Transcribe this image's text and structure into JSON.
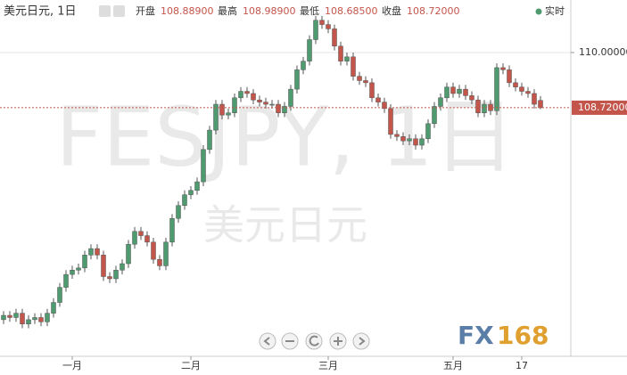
{
  "header": {
    "symbol": "美元日元, 1日",
    "open_label": "开盘",
    "open": "108.88900",
    "high_label": "最高",
    "high": "108.98900",
    "low_label": "最低",
    "low": "108.68500",
    "close_label": "收盘",
    "close": "108.72000",
    "live": "实时"
  },
  "watermark": {
    "symbol": "FESJPY, 1日",
    "name": "美元日元"
  },
  "logo": {
    "brand": "FX",
    "digits": "168"
  },
  "chart_data": {
    "type": "candlestick",
    "categories": [
      null,
      null,
      null,
      null,
      null,
      null,
      null,
      null,
      null,
      null,
      null,
      "一月",
      null,
      null,
      null,
      null,
      null,
      null,
      null,
      null,
      null,
      null,
      null,
      null,
      null,
      null,
      null,
      null,
      null,
      null,
      "二月",
      null,
      null,
      null,
      null,
      null,
      null,
      null,
      null,
      null,
      null,
      null,
      null,
      null,
      null,
      null,
      null,
      null,
      null,
      null,
      null,
      null,
      "三月",
      null,
      null,
      null,
      null,
      null,
      null,
      null,
      null,
      null,
      null,
      null,
      null,
      null,
      null,
      null,
      null,
      null,
      null,
      null,
      "五月",
      null,
      null,
      null,
      null,
      null,
      null,
      null,
      null,
      null,
      null,
      "17",
      null,
      null,
      null
    ],
    "open": [
      103.8,
      103.9,
      103.85,
      103.95,
      103.7,
      103.8,
      103.85,
      103.75,
      103.95,
      104.2,
      104.55,
      104.85,
      104.95,
      105.0,
      105.3,
      105.45,
      105.3,
      104.8,
      104.75,
      104.95,
      105.1,
      105.55,
      105.85,
      105.75,
      105.6,
      105.2,
      105.05,
      105.6,
      106.15,
      106.45,
      106.7,
      106.8,
      107.0,
      107.75,
      108.2,
      108.8,
      108.55,
      108.6,
      108.95,
      109.1,
      109.05,
      108.9,
      108.85,
      108.8,
      108.8,
      108.6,
      108.75,
      109.15,
      109.6,
      109.8,
      110.3,
      110.75,
      110.65,
      110.55,
      110.15,
      109.8,
      109.9,
      109.45,
      109.35,
      109.3,
      108.95,
      108.85,
      108.7,
      108.1,
      108.05,
      107.95,
      108.0,
      107.85,
      108.0,
      108.35,
      108.75,
      108.95,
      109.2,
      109.05,
      109.15,
      109.0,
      108.9,
      108.6,
      108.8,
      108.65,
      109.65,
      109.6,
      109.3,
      109.2,
      109.1,
      109.05,
      108.889
    ],
    "high": [
      104.0,
      104.0,
      104.05,
      104.05,
      103.9,
      103.95,
      103.95,
      104.05,
      104.3,
      104.65,
      104.95,
      105.05,
      105.1,
      105.4,
      105.55,
      105.55,
      105.4,
      104.9,
      105.05,
      105.2,
      105.65,
      105.95,
      105.95,
      105.85,
      105.7,
      105.3,
      105.7,
      106.25,
      106.55,
      106.8,
      106.9,
      107.1,
      107.85,
      108.3,
      108.9,
      108.9,
      108.7,
      109.05,
      109.2,
      109.2,
      109.15,
      109.0,
      108.95,
      108.9,
      108.9,
      108.85,
      109.25,
      109.7,
      109.9,
      110.4,
      110.85,
      110.85,
      110.75,
      110.65,
      110.25,
      110.0,
      110.0,
      109.55,
      109.45,
      109.4,
      109.05,
      108.95,
      108.8,
      108.2,
      108.15,
      108.1,
      108.1,
      108.1,
      108.45,
      108.85,
      109.05,
      109.3,
      109.3,
      109.25,
      109.25,
      109.1,
      109.0,
      108.9,
      108.9,
      109.75,
      109.75,
      109.7,
      109.4,
      109.3,
      109.2,
      109.15,
      108.989
    ],
    "low": [
      103.7,
      103.75,
      103.75,
      103.6,
      103.6,
      103.7,
      103.65,
      103.65,
      103.85,
      104.1,
      104.45,
      104.75,
      104.85,
      104.9,
      105.2,
      105.2,
      104.7,
      104.65,
      104.65,
      104.85,
      105.0,
      105.45,
      105.65,
      105.5,
      105.1,
      104.95,
      104.95,
      105.5,
      106.05,
      106.35,
      106.6,
      106.7,
      106.9,
      107.65,
      108.1,
      108.45,
      108.45,
      108.5,
      108.85,
      108.95,
      108.8,
      108.75,
      108.7,
      108.7,
      108.5,
      108.5,
      108.65,
      109.05,
      109.5,
      109.7,
      110.2,
      110.55,
      110.45,
      110.05,
      109.7,
      109.7,
      109.35,
      109.25,
      109.2,
      108.85,
      108.75,
      108.6,
      108.0,
      107.95,
      107.85,
      107.85,
      107.75,
      107.75,
      107.9,
      108.25,
      108.65,
      108.85,
      108.95,
      108.95,
      108.9,
      108.8,
      108.5,
      108.5,
      108.55,
      108.55,
      109.5,
      109.2,
      109.1,
      109.0,
      108.95,
      108.7,
      108.685
    ],
    "close": [
      103.9,
      103.85,
      103.95,
      103.7,
      103.8,
      103.85,
      103.75,
      103.95,
      104.2,
      104.55,
      104.85,
      104.95,
      105.0,
      105.3,
      105.45,
      105.3,
      104.8,
      104.75,
      104.95,
      105.1,
      105.55,
      105.85,
      105.75,
      105.6,
      105.2,
      105.05,
      105.6,
      106.15,
      106.45,
      106.7,
      106.8,
      107.0,
      107.75,
      108.2,
      108.8,
      108.55,
      108.6,
      108.95,
      109.1,
      109.05,
      108.9,
      108.85,
      108.8,
      108.8,
      108.6,
      108.75,
      109.15,
      109.6,
      109.8,
      110.3,
      110.75,
      110.65,
      110.55,
      110.15,
      109.8,
      109.9,
      109.45,
      109.35,
      109.3,
      108.95,
      108.85,
      108.7,
      108.1,
      108.05,
      107.95,
      108.0,
      107.85,
      108.0,
      108.35,
      108.75,
      108.95,
      109.2,
      109.05,
      109.15,
      109.0,
      108.9,
      108.6,
      108.8,
      108.65,
      109.65,
      109.6,
      109.3,
      109.2,
      109.1,
      109.05,
      108.8,
      108.72
    ],
    "up_color": "#4f9a6e",
    "down_color": "#c4554b",
    "ylim": [
      102.95,
      111.22
    ],
    "yticks": [
      {
        "value": 110,
        "label": "110.00000"
      }
    ],
    "last_price": {
      "value": 108.72,
      "label": "108.72000"
    },
    "grid": true
  }
}
